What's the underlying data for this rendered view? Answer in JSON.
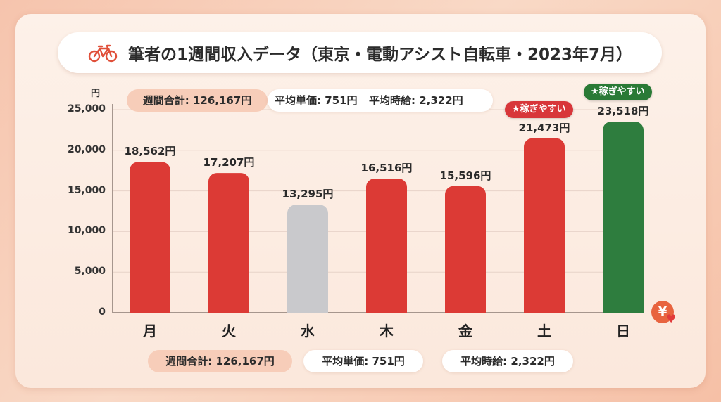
{
  "title": "筆者の1週間収入データ（東京・電動アシスト自転車・2023年7月）",
  "icons": {
    "title_icon": "bicycle-icon",
    "corner_icon": "yen-coin-icon",
    "heart_icon": "heart-icon"
  },
  "colors": {
    "bar_default": "#dc3a35",
    "bar_low": "#c9c9cc",
    "bar_best": "#2e7d3e",
    "badge_red": "#d8363a",
    "badge_green": "#2a7a36"
  },
  "stats_top": {
    "weekly_total": "週間合計: 126,167円",
    "avg_unit_price": "平均単価: 751円",
    "avg_hourly": "平均時給: 2,322円"
  },
  "stats_bottom": {
    "weekly_total": "週間合計: 126,167円",
    "avg_unit_price": "平均単価: 751円",
    "avg_hourly": "平均時給: 2,322円"
  },
  "badges": {
    "sat": "★稼ぎやすい",
    "sun": "★稼ぎやすい"
  },
  "chart_data": {
    "type": "bar",
    "title": "筆者の1週間収入データ（東京・電動アシスト自転車・2023年7月）",
    "ylabel": "円",
    "ylim": [
      0,
      25000
    ],
    "yticks": [
      0,
      5000,
      10000,
      15000,
      20000,
      25000
    ],
    "ytick_labels": [
      "0",
      "5,000",
      "10,000",
      "15,000",
      "20,000",
      "25,000"
    ],
    "categories": [
      "月",
      "火",
      "水",
      "木",
      "金",
      "土",
      "日"
    ],
    "values": [
      18562,
      17207,
      13295,
      16516,
      15596,
      21473,
      23518
    ],
    "value_labels": [
      "18,562円",
      "17,207円",
      "13,295円",
      "16,516円",
      "15,596円",
      "21,473円",
      "23,518円"
    ],
    "bar_colors": [
      "#dc3a35",
      "#dc3a35",
      "#c9c9cc",
      "#dc3a35",
      "#dc3a35",
      "#dc3a35",
      "#2e7d3e"
    ],
    "grid": true
  }
}
